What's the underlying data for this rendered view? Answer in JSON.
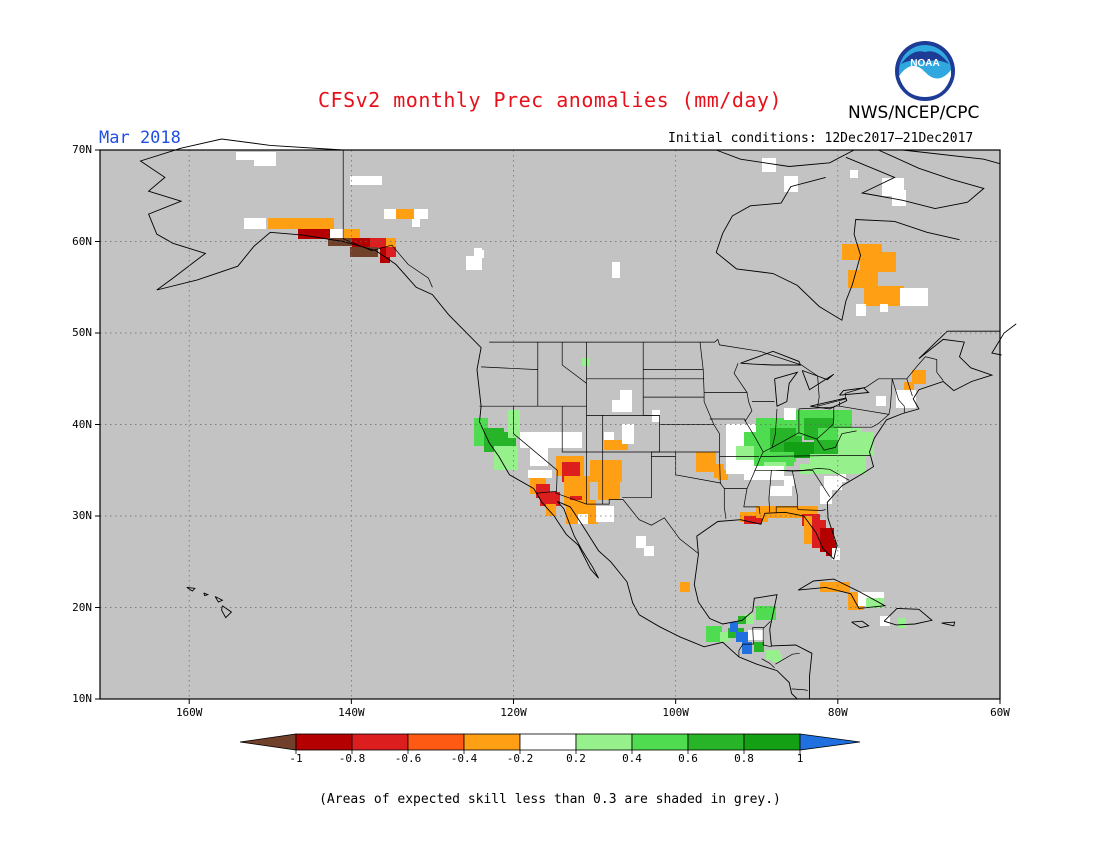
{
  "title": "CFSv2 monthly Prec anomalies (mm/day)",
  "valid_month": "Mar 2018",
  "agency": "NWS/NCEP/CPC",
  "logo_text": "NOAA",
  "initial_conditions": "Initial conditions: 12Dec2017–21Dec2017",
  "footnote": "(Areas of expected skill less than 0.3 are shaded in grey.)",
  "map": {
    "lon_range": [
      -171,
      -60
    ],
    "lat_range": [
      10,
      70
    ],
    "lat_ticks": [
      {
        "value": 70,
        "label": "70N"
      },
      {
        "value": 60,
        "label": "60N"
      },
      {
        "value": 50,
        "label": "50N"
      },
      {
        "value": 40,
        "label": "40N"
      },
      {
        "value": 30,
        "label": "30N"
      },
      {
        "value": 20,
        "label": "20N"
      },
      {
        "value": 10,
        "label": "10N"
      }
    ],
    "lon_ticks": [
      {
        "value": -160,
        "label": "160W"
      },
      {
        "value": -140,
        "label": "140W"
      },
      {
        "value": -120,
        "label": "120W"
      },
      {
        "value": -100,
        "label": "100W"
      },
      {
        "value": -80,
        "label": "80W"
      },
      {
        "value": -60,
        "label": "60W"
      }
    ],
    "grid": true,
    "low_skill_color": "#c3c3c3"
  },
  "colorbar": {
    "labels": [
      "-1",
      "-0.8",
      "-0.6",
      "-0.4",
      "-0.2",
      "0.2",
      "0.4",
      "0.6",
      "0.8",
      "1"
    ],
    "colors": [
      "#70402a",
      "#b40000",
      "#dc1e1e",
      "#ff5a14",
      "#ffa014",
      "#ffffff",
      "#96f08c",
      "#50dc50",
      "#28b428",
      "#14a014",
      "#2070e0"
    ]
  },
  "anomaly_regions": [
    {
      "region": "Southeast Alaska coast",
      "value": -0.8
    },
    {
      "region": "Alaska south coast",
      "value": -0.4
    },
    {
      "region": "Labrador / Quebec",
      "value": -0.4
    },
    {
      "region": "California Central Valley",
      "value": 0.7
    },
    {
      "region": "Arizona / Sonora",
      "value": -0.4
    },
    {
      "region": "Southern California coast",
      "value": -0.6
    },
    {
      "region": "Ohio Valley / Tennessee",
      "value": 0.5
    },
    {
      "region": "Kentucky / West Virginia",
      "value": 0.7
    },
    {
      "region": "Florida peninsula",
      "value": -0.7
    },
    {
      "region": "Gulf Coast",
      "value": -0.4
    },
    {
      "region": "Central America (Guatemala)",
      "value": 1.0
    }
  ]
}
